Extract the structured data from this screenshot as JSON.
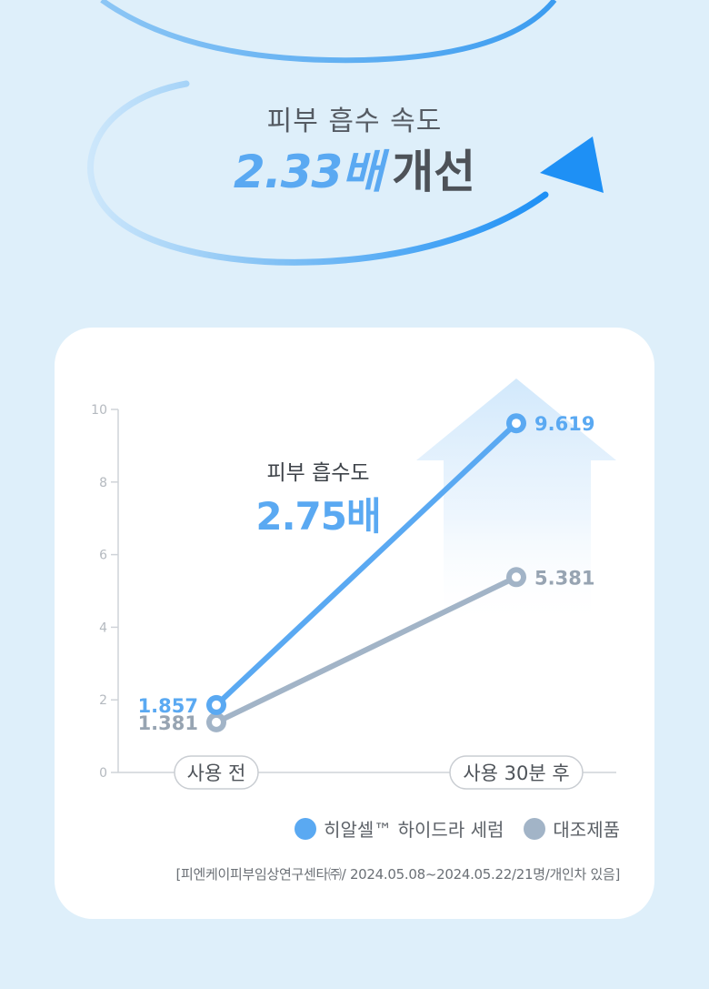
{
  "header": {
    "subtitle": "피부 흡수 속도",
    "highlight_value": "2.33배",
    "highlight_word": "개선"
  },
  "chart_data": {
    "type": "line",
    "categories": [
      "사용 전",
      "사용 30분 후"
    ],
    "ylim": [
      0,
      10
    ],
    "yticks": [
      "0",
      "2",
      "4",
      "6",
      "8",
      "10"
    ],
    "series": [
      {
        "name": "히알셀™ 하이드라 세럼",
        "values": [
          1.857,
          9.619
        ],
        "labels": [
          "1.857",
          "9.619"
        ],
        "color": "#5aa9f2"
      },
      {
        "name": "대조제품",
        "values": [
          1.381,
          5.381
        ],
        "labels": [
          "1.381",
          "5.381"
        ],
        "color": "#a2b4c7"
      }
    ],
    "annotation": {
      "label": "피부 흡수도",
      "value": "2.75배"
    },
    "grid": false,
    "legend_position": "bottom-right"
  },
  "source_note": "[피엔케이피부임상연구센타㈜/ 2024.05.08~2024.05.22/21명/개인차 있음]",
  "colors": {
    "accent_blue": "#5aa9f2",
    "control_gray": "#a2b4c7",
    "background": "#deeffa"
  }
}
